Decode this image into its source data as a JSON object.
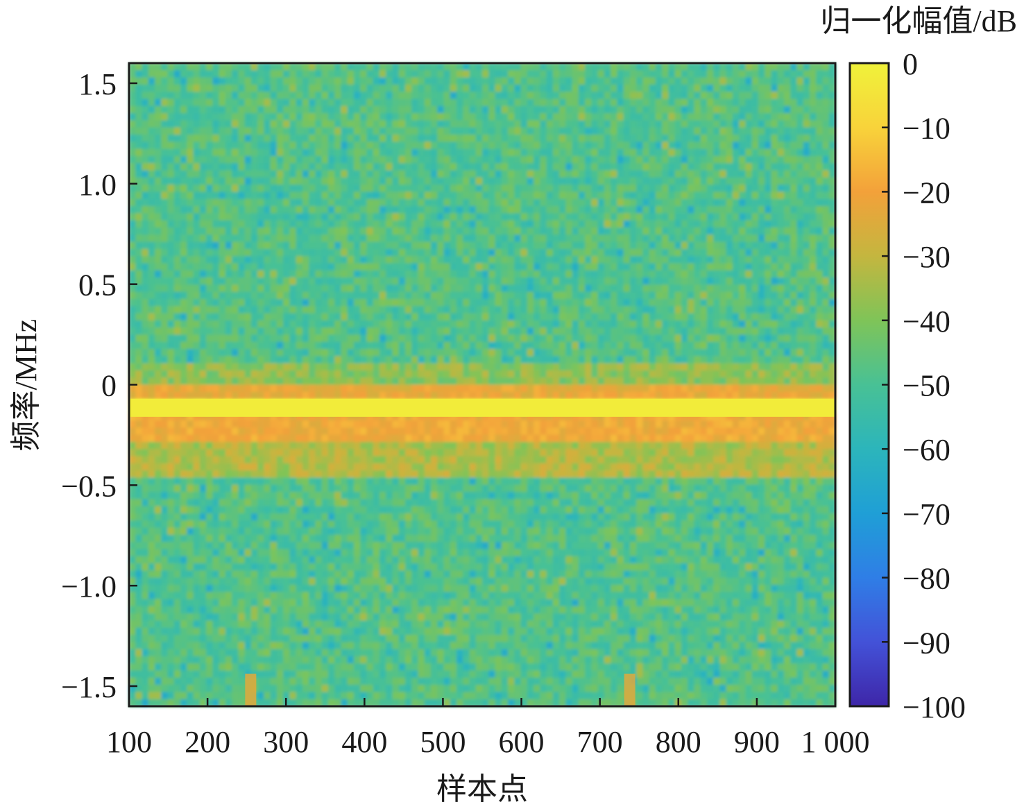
{
  "chart_data": {
    "type": "heatmap",
    "title": "",
    "xlabel": "样本点",
    "ylabel": "频率/MHz",
    "xlim": [
      100,
      1000
    ],
    "ylim": [
      -1.6,
      1.6
    ],
    "x_ticks": [
      100,
      200,
      300,
      400,
      500,
      600,
      700,
      800,
      900,
      1000
    ],
    "x_tick_labels": [
      "100",
      "200",
      "300",
      "400",
      "500",
      "600",
      "700",
      "800",
      "900",
      "1 000"
    ],
    "y_ticks": [
      1.5,
      1.0,
      0.5,
      0,
      -0.5,
      -1.0,
      -1.5
    ],
    "y_tick_labels": [
      "1.5",
      "1.0",
      "0.5",
      "0",
      "−0.5",
      "−1.0",
      "−1.5"
    ],
    "colorbar": {
      "label": "归一化幅值/dB",
      "range": [
        -100,
        0
      ],
      "ticks": [
        0,
        -10,
        -20,
        -30,
        -40,
        -50,
        -60,
        -70,
        -80,
        -90,
        -100
      ],
      "tick_labels": [
        "0",
        "−10",
        "−20",
        "−30",
        "−40",
        "−50",
        "−60",
        "−70",
        "−80",
        "−90",
        "−100"
      ],
      "colormap": [
        "#3e26a8",
        "#4352d8",
        "#2f7ee6",
        "#1f9fd6",
        "#2cb5bb",
        "#48c195",
        "#7fc458",
        "#c4b63f",
        "#f3a13a",
        "#f8d33a",
        "#f0f23a"
      ]
    },
    "grid": false,
    "description_bands": [
      {
        "y": [
          -0.07,
          -0.16
        ],
        "value": -2
      },
      {
        "y": [
          0.0,
          -0.07
        ],
        "value": -22
      },
      {
        "y": [
          -0.16,
          -0.3
        ],
        "value": -20
      },
      {
        "y": [
          -0.3,
          -0.45
        ],
        "value": -33
      },
      {
        "y": [
          0.1,
          0.0
        ],
        "value": -38
      }
    ],
    "background_value": -48,
    "spikes": [
      {
        "x": 255,
        "y": [
          -1.5,
          -1.6
        ],
        "value": -24
      },
      {
        "x": 738,
        "y": [
          -1.5,
          -1.6
        ],
        "value": -24
      }
    ]
  }
}
